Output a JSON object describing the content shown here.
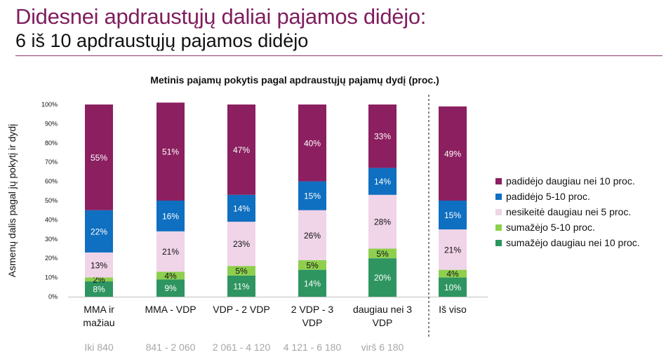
{
  "header": {
    "title": "Didesnei apdraustųjų daliai pajamos didėjo:",
    "subtitle": "6 iš 10 apdraustųjų pajamos didėjo"
  },
  "chart_data": {
    "type": "bar",
    "stacked": true,
    "title": "Metinis pajamų pokytis pagal apdraustųjų pajamų dydį (proc.)",
    "xlabel": "",
    "ylabel": "Asmenų dalis pagal jų pokytį ir dydį",
    "ylim": [
      0,
      100
    ],
    "yticks": [
      "0%",
      "10%",
      "20%",
      "30%",
      "40%",
      "50%",
      "60%",
      "70%",
      "80%",
      "90%",
      "100%"
    ],
    "categories": [
      [
        "MMA ir",
        "mažiau"
      ],
      [
        "MMA - VDP"
      ],
      [
        "VDP - 2 VDP"
      ],
      [
        "2 VDP - 3",
        "VDP"
      ],
      [
        "daugiau nei 3",
        "VDP"
      ],
      [
        "Iš viso"
      ]
    ],
    "sublabels": [
      "Iki 840",
      "841 - 2 060",
      "2 061 - 4 120",
      "4 121 - 6 180",
      "virš 6 180",
      ""
    ],
    "separator_before_index": 5,
    "legend_position": "right",
    "grid": false,
    "series": [
      {
        "name": "sumažėjo daugiau nei 10 proc.",
        "color": "#2e9561",
        "label_color": "#ffffff",
        "values": [
          8,
          9,
          11,
          14,
          20,
          10
        ]
      },
      {
        "name": "sumažėjo 5-10 proc.",
        "color": "#8ecf4e",
        "label_color": "#111111",
        "values": [
          2,
          4,
          5,
          5,
          5,
          4
        ]
      },
      {
        "name": "nesikeitė daugiau nei 5 proc.",
        "color": "#f0d4e8",
        "label_color": "#111111",
        "values": [
          13,
          21,
          23,
          26,
          28,
          21
        ]
      },
      {
        "name": "padidėjo 5-10 proc.",
        "color": "#0f6fc0",
        "label_color": "#ffffff",
        "values": [
          22,
          16,
          14,
          15,
          14,
          15
        ]
      },
      {
        "name": "padidėjo daugiau nei 10 proc.",
        "color": "#8b1f5f",
        "label_color": "#ffffff",
        "values": [
          55,
          51,
          47,
          40,
          33,
          49
        ]
      }
    ],
    "legend_order": [
      4,
      3,
      2,
      1,
      0
    ]
  }
}
